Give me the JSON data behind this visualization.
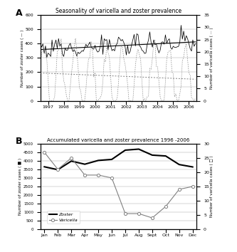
{
  "panel_A": {
    "title": "Seasonality of varicella and zoster prevalence",
    "xlabel_years": [
      "1997",
      "1998",
      "1999",
      "2000",
      "2001",
      "2002",
      "2003",
      "2004",
      "2005",
      "2006"
    ],
    "ylabel_left": "Number of zoster cases ( — )",
    "ylabel_right": "Number of varicella cases ( ··· )",
    "ylim_left": [
      0,
      600
    ],
    "ylim_right": [
      0,
      35
    ],
    "yticks_left": [
      0,
      100,
      200,
      300,
      400,
      500,
      600
    ],
    "yticks_right": [
      0,
      5,
      10,
      15,
      20,
      25,
      30,
      35
    ]
  },
  "panel_B": {
    "title": "Accumulated varicella and zoster prevalence 1996 -2006",
    "months": [
      "Jan",
      "Feb",
      "Mar",
      "Apr",
      "May",
      "Jun",
      "Jul",
      "Aug",
      "Sept",
      "Oct",
      "Nov",
      "Dec"
    ],
    "zoster": [
      3650,
      3480,
      3980,
      3800,
      4020,
      4080,
      4620,
      4680,
      4330,
      4280,
      3780,
      3640
    ],
    "varicella": [
      27,
      21,
      25,
      19,
      19,
      18,
      5.5,
      5.5,
      4,
      8,
      14,
      15
    ],
    "ylabel_left": "Number of zoster cases ( ■ )",
    "ylabel_right": "Number of varicella cases ( □ )",
    "ylim_left": [
      0,
      5000
    ],
    "ylim_right": [
      0,
      30
    ],
    "yticks_left": [
      0,
      500,
      1000,
      1500,
      2000,
      2500,
      3000,
      3500,
      4000,
      4500,
      5000
    ],
    "yticks_right": [
      0,
      5,
      10,
      15,
      20,
      25,
      30
    ],
    "legend_zoster": "Zoster",
    "legend_varicella": "Varicella"
  }
}
